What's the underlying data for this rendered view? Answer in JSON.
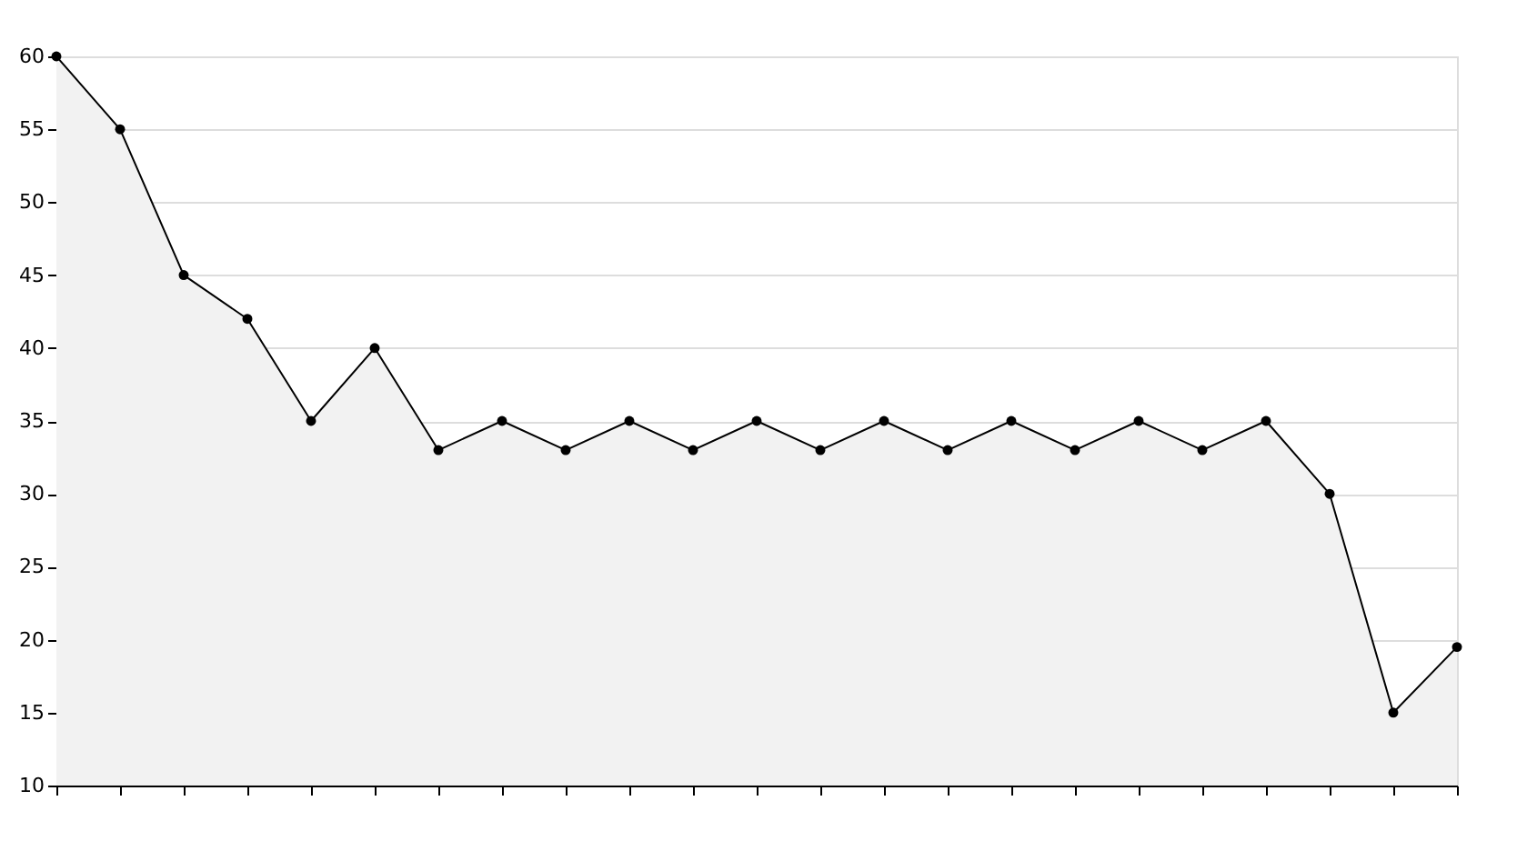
{
  "chart_data": {
    "type": "area",
    "categories": [
      null,
      null,
      null,
      null,
      null,
      null,
      null,
      null,
      null,
      null,
      null,
      null,
      null,
      null,
      null,
      null,
      null,
      null,
      null,
      null,
      null,
      null,
      null
    ],
    "series": [
      {
        "color": "#000000",
        "values": [
          60,
          55,
          45,
          42,
          35,
          40,
          33,
          35,
          33,
          35,
          33,
          35,
          33,
          35,
          33,
          35,
          33,
          35,
          33,
          35,
          30,
          15,
          19.5
        ]
      }
    ],
    "ylim": [
      10,
      60
    ],
    "yticks": [
      10,
      15,
      20,
      25,
      30,
      35,
      40,
      45,
      50,
      55,
      60
    ],
    "grid": "y",
    "marker": "circle",
    "line_style": "solid",
    "tick_labels": "y"
  }
}
